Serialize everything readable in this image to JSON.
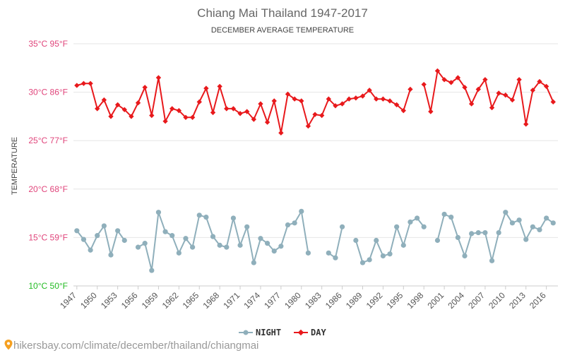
{
  "chart_data": {
    "type": "line",
    "title": "Chiang Mai Thailand 1947-2017",
    "subtitle": "DECEMBER AVERAGE TEMPERATURE",
    "ylabel": "TEMPERATURE",
    "y_ticks": [
      {
        "value": 10,
        "label": "10°C 50°F",
        "color": "#22bb22"
      },
      {
        "value": 15,
        "label": "15°C 59°F",
        "color": "#e0457b"
      },
      {
        "value": 20,
        "label": "20°C 68°F",
        "color": "#e0457b"
      },
      {
        "value": 25,
        "label": "25°C 77°F",
        "color": "#e0457b"
      },
      {
        "value": 30,
        "label": "30°C 86°F",
        "color": "#e0457b"
      },
      {
        "value": 35,
        "label": "35°C 95°F",
        "color": "#e0457b"
      }
    ],
    "ylim": [
      10,
      35
    ],
    "xlim": [
      1946.5,
      2017.7
    ],
    "x_ticks": [
      1947,
      1950,
      1953,
      1956,
      1959,
      1962,
      1965,
      1968,
      1971,
      1974,
      1977,
      1980,
      1983,
      1986,
      1989,
      1992,
      1995,
      1998,
      2001,
      2004,
      2007,
      2010,
      2013,
      2016
    ],
    "grid": true,
    "legend_position": "bottom-center",
    "x": [
      1947,
      1948,
      1949,
      1950,
      1951,
      1952,
      1953,
      1954,
      1955,
      1956,
      1957,
      1958,
      1959,
      1960,
      1961,
      1962,
      1963,
      1964,
      1965,
      1966,
      1967,
      1968,
      1969,
      1970,
      1971,
      1972,
      1973,
      1974,
      1975,
      1976,
      1977,
      1978,
      1979,
      1980,
      1981,
      1982,
      1983,
      1984,
      1985,
      1986,
      1987,
      1988,
      1989,
      1990,
      1991,
      1992,
      1993,
      1994,
      1995,
      1996,
      1997,
      1998,
      1999,
      2000,
      2001,
      2002,
      2003,
      2004,
      2005,
      2006,
      2007,
      2008,
      2009,
      2010,
      2011,
      2012,
      2013,
      2014,
      2015,
      2016,
      2017
    ],
    "series": [
      {
        "name": "NIGHT",
        "color": "#8fafbb",
        "values": [
          15.7,
          14.8,
          13.7,
          15.2,
          16.2,
          13.2,
          15.7,
          14.7,
          null,
          14.0,
          14.4,
          11.6,
          17.6,
          15.6,
          15.2,
          13.4,
          14.9,
          14.0,
          17.3,
          17.1,
          15.1,
          14.2,
          14.0,
          17.0,
          14.2,
          16.1,
          12.4,
          14.9,
          14.4,
          13.6,
          14.1,
          16.3,
          16.5,
          17.7,
          13.4,
          null,
          null,
          13.4,
          12.9,
          16.1,
          null,
          14.7,
          12.4,
          12.7,
          14.7,
          13.1,
          13.3,
          16.1,
          14.2,
          16.6,
          17.0,
          16.1,
          null,
          14.7,
          17.4,
          17.1,
          15.0,
          13.1,
          15.4,
          15.5,
          15.5,
          12.6,
          15.5,
          17.6,
          16.5,
          16.8,
          14.8,
          16.1,
          15.8,
          17.0,
          16.5
        ]
      },
      {
        "name": "DAY",
        "color": "#e8191c",
        "values": [
          30.7,
          30.9,
          30.9,
          28.3,
          29.2,
          27.5,
          28.7,
          28.2,
          27.5,
          28.9,
          30.5,
          27.6,
          31.5,
          27.0,
          28.3,
          28.1,
          27.4,
          27.4,
          29.0,
          30.4,
          27.9,
          30.6,
          28.3,
          28.3,
          27.8,
          28.0,
          27.2,
          28.8,
          26.9,
          29.1,
          25.8,
          29.8,
          29.3,
          29.1,
          26.5,
          27.7,
          27.6,
          29.3,
          28.6,
          28.8,
          29.3,
          29.4,
          29.6,
          30.2,
          29.3,
          29.3,
          29.1,
          28.7,
          28.1,
          30.3,
          null,
          30.8,
          28.0,
          32.2,
          31.3,
          31.0,
          31.5,
          30.5,
          28.8,
          30.3,
          31.3,
          28.4,
          29.9,
          29.7,
          29.2,
          31.3,
          26.7,
          30.2,
          31.1,
          30.6,
          29.0
        ]
      }
    ]
  },
  "watermark": "hikersbay.com/climate/december/thailand/chiangmai"
}
